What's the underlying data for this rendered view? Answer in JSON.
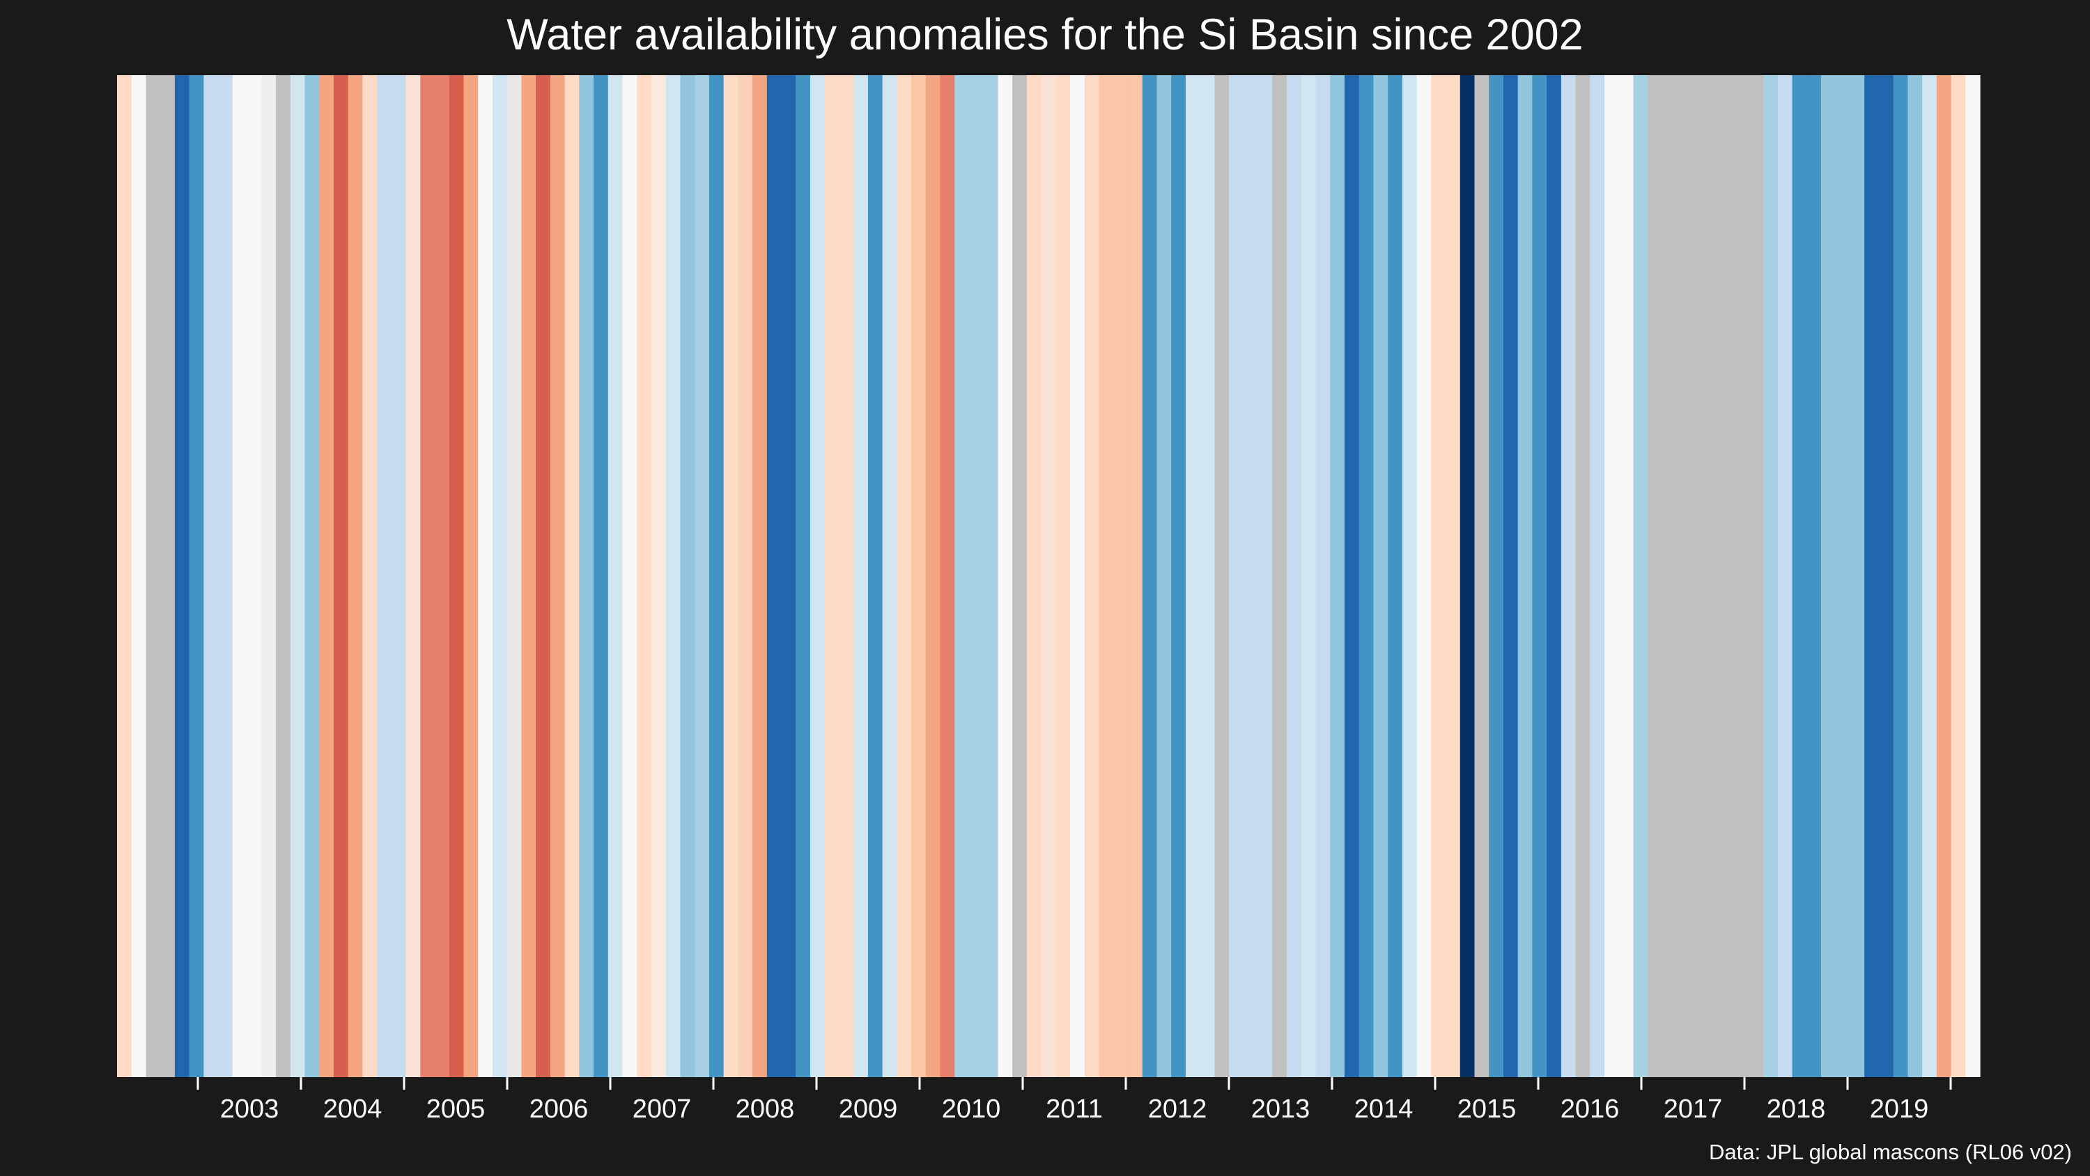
{
  "chart_data": {
    "type": "heatmap",
    "title": "Water availability anomalies for the Si Basin since 2002",
    "caption": "Data: JPL global mascons (RL06 v02)",
    "x_tick_labels": [
      "2003",
      "2004",
      "2005",
      "2006",
      "2007",
      "2008",
      "2009",
      "2010",
      "2011",
      "2012",
      "2013",
      "2014",
      "2015",
      "2016",
      "2017",
      "2018",
      "2019"
    ],
    "x_range": [
      "2002-04",
      "2020-06"
    ],
    "grid": false,
    "legend": "none",
    "color_scale": {
      "scheme": "RdBu",
      "dry": "#b2182b",
      "neutral": "#f7f7f7",
      "wet": "#053061",
      "missing": "#c0c0c0"
    },
    "stripe_colors": [
      "#fddbc7",
      "#f7f7f7",
      "#c0c0c0",
      "#c0c0c0",
      "#2166ac",
      "#4393c3",
      "#c6dbef",
      "#c6dbef",
      "#f7f7f7",
      "#f7f7f7",
      "#eeeeee",
      "#c0c0c0",
      "#d1e5f0",
      "#92c5de",
      "#f4a582",
      "#d6604d",
      "#f4a582",
      "#fddbc7",
      "#c6dbef",
      "#c6dbef",
      "#fce2d6",
      "#e7806a",
      "#e7806a",
      "#d6604d",
      "#f4a582",
      "#f7f7f7",
      "#d1e5f0",
      "#e8e8e8",
      "#f4a582",
      "#d6604d",
      "#f4a582",
      "#fddbc7",
      "#92c5de",
      "#4393c3",
      "#d1e5f0",
      "#f7f7f7",
      "#fddbc7",
      "#fbe9e0",
      "#d1e5f0",
      "#92c5de",
      "#a6d0e4",
      "#4393c3",
      "#fddbc7",
      "#fbd0b9",
      "#f4a582",
      "#2166ac",
      "#2166ac",
      "#4393c3",
      "#d1e5f0",
      "#fddbc7",
      "#fddbc7",
      "#d1e5f0",
      "#4393c3",
      "#d1e5f0",
      "#fddbc7",
      "#fbc5a8",
      "#f4a582",
      "#e7806a",
      "#a6d0e4",
      "#a6d0e4",
      "#a6d0e4",
      "#f7f7f7",
      "#c0c0c0",
      "#fddbc7",
      "#fce2d6",
      "#fddbc7",
      "#f7f7f7",
      "#fddbc7",
      "#fbc5a8",
      "#fbc5a8",
      "#fbc5a8",
      "#4393c3",
      "#92c5de",
      "#4393c3",
      "#d1e5f0",
      "#d1e5f0",
      "#c0c0c0",
      "#c6dbef",
      "#c6dbef",
      "#c6dbef",
      "#c0c0c0",
      "#c6dbef",
      "#d1e5f0",
      "#c6dbef",
      "#92c5de",
      "#2166ac",
      "#4393c3",
      "#92c5de",
      "#4393c3",
      "#d1e5f0",
      "#f7f7f7",
      "#fddbc7",
      "#fddbc7",
      "#053061",
      "#c0c0c0",
      "#4393c3",
      "#2166ac",
      "#92c5de",
      "#4393c3",
      "#2166ac",
      "#c6dbef",
      "#c0c0c0",
      "#c6dbef",
      "#f7f7f7",
      "#f7f7f7",
      "#a6d0e4",
      "#c0c0c0",
      "#c0c0c0",
      "#c0c0c0",
      "#c0c0c0",
      "#c0c0c0",
      "#c0c0c0",
      "#c0c0c0",
      "#c0c0c0",
      "#a6d0e4",
      "#c6dbef",
      "#4393c3",
      "#4393c3",
      "#92c5de",
      "#92c5de",
      "#92c5de",
      "#2166ac",
      "#2166ac",
      "#4393c3",
      "#92c5de",
      "#d1e5f0",
      "#f4a582",
      "#fddbc7",
      "#f7f7f7"
    ]
  }
}
